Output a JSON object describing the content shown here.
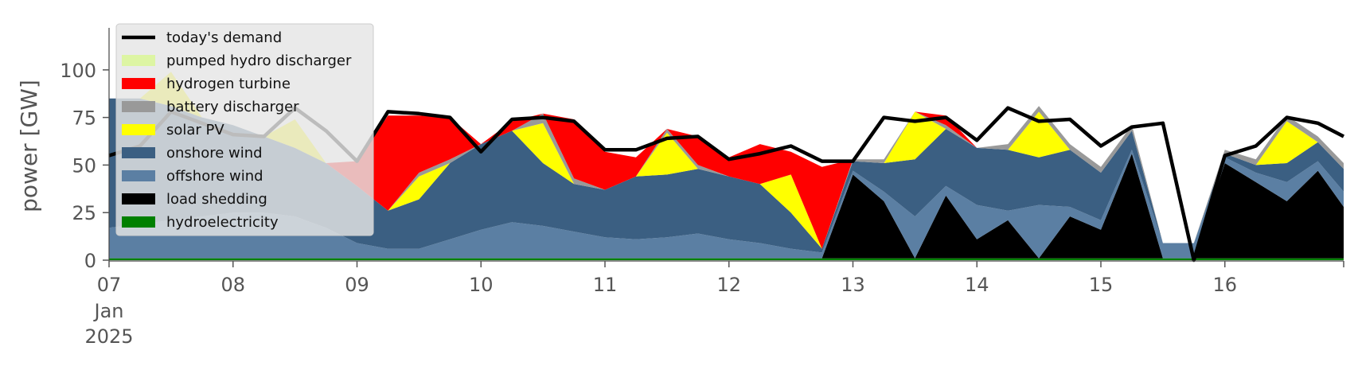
{
  "chart_data": {
    "type": "area",
    "title": "",
    "xlabel": "",
    "ylabel": "power [GW]",
    "ylim": [
      0,
      120
    ],
    "xlim": [
      "2025-01-07T00:00",
      "2025-01-16T23:00"
    ],
    "x_ticks": [
      "07",
      "08",
      "09",
      "10",
      "11",
      "12",
      "13",
      "14",
      "15",
      "16"
    ],
    "x_tick_sublabels": [
      "Jan",
      "2025"
    ],
    "y_ticks": [
      0,
      25,
      50,
      75,
      100
    ],
    "grid": false,
    "legend_placement": "top-left",
    "x": [
      "2025-01-07T00:00",
      "2025-01-07T06:00",
      "2025-01-07T12:00",
      "2025-01-07T18:00",
      "2025-01-08T00:00",
      "2025-01-08T06:00",
      "2025-01-08T12:00",
      "2025-01-08T18:00",
      "2025-01-09T00:00",
      "2025-01-09T06:00",
      "2025-01-09T12:00",
      "2025-01-09T18:00",
      "2025-01-10T00:00",
      "2025-01-10T06:00",
      "2025-01-10T12:00",
      "2025-01-10T18:00",
      "2025-01-11T00:00",
      "2025-01-11T06:00",
      "2025-01-11T12:00",
      "2025-01-11T18:00",
      "2025-01-12T00:00",
      "2025-01-12T06:00",
      "2025-01-12T12:00",
      "2025-01-12T18:00",
      "2025-01-13T00:00",
      "2025-01-13T06:00",
      "2025-01-13T12:00",
      "2025-01-13T18:00",
      "2025-01-14T00:00",
      "2025-01-14T06:00",
      "2025-01-14T12:00",
      "2025-01-14T18:00",
      "2025-01-15T00:00",
      "2025-01-15T06:00",
      "2025-01-15T12:00",
      "2025-01-15T18:00",
      "2025-01-16T00:00",
      "2025-01-16T06:00",
      "2025-01-16T12:00",
      "2025-01-16T18:00",
      "2025-01-16T23:00"
    ],
    "series": [
      {
        "name": "hydroelectricity",
        "color": "#008000",
        "values": [
          1,
          1,
          1,
          1,
          1,
          1,
          1,
          1,
          1,
          1,
          1,
          1,
          1,
          1,
          1,
          1,
          1,
          1,
          1,
          1,
          1,
          1,
          1,
          1,
          1,
          1,
          1,
          1,
          1,
          1,
          1,
          1,
          1,
          1,
          1,
          1,
          1,
          1,
          1,
          1,
          1
        ]
      },
      {
        "name": "load shedding",
        "color": "#000000",
        "values": [
          0,
          0,
          0,
          0,
          0,
          0,
          0,
          0,
          0,
          0,
          0,
          0,
          0,
          0,
          0,
          0,
          0,
          0,
          0,
          0,
          0,
          0,
          0,
          0,
          44,
          30,
          0,
          33,
          10,
          20,
          0,
          22,
          15,
          55,
          0,
          0,
          50,
          40,
          30,
          46,
          27
        ]
      },
      {
        "name": "offshore wind",
        "color": "#5b7fa3",
        "values": [
          16,
          18,
          20,
          22,
          24,
          24,
          22,
          16,
          8,
          5,
          5,
          10,
          15,
          19,
          17,
          14,
          11,
          10,
          11,
          13,
          10,
          8,
          5,
          3,
          2,
          5,
          22,
          5,
          18,
          5,
          28,
          5,
          5,
          2,
          8,
          8,
          3,
          5,
          10,
          5,
          8
        ]
      },
      {
        "name": "onshore wind",
        "color": "#3b5f82",
        "values": [
          68,
          66,
          60,
          52,
          46,
          40,
          36,
          34,
          30,
          20,
          26,
          40,
          45,
          48,
          33,
          25,
          25,
          33,
          33,
          34,
          33,
          31,
          19,
          2,
          5,
          15,
          30,
          30,
          30,
          32,
          25,
          30,
          25,
          10,
          0,
          0,
          2,
          4,
          10,
          10,
          12
        ]
      },
      {
        "name": "solar PV",
        "color": "#ffff00",
        "values": [
          0,
          0,
          18,
          0,
          0,
          0,
          15,
          0,
          0,
          0,
          12,
          0,
          0,
          0,
          21,
          0,
          0,
          0,
          22,
          0,
          0,
          0,
          20,
          0,
          0,
          0,
          25,
          0,
          0,
          0,
          24,
          0,
          0,
          0,
          0,
          0,
          0,
          0,
          22,
          0,
          0
        ]
      },
      {
        "name": "battery discharger",
        "color": "#999999",
        "values": [
          0,
          0,
          0,
          0,
          0,
          0,
          0,
          0,
          0,
          0,
          2,
          2,
          0,
          0,
          5,
          3,
          0,
          0,
          2,
          2,
          0,
          0,
          0,
          0,
          1,
          2,
          0,
          2,
          0,
          3,
          3,
          3,
          3,
          3,
          0,
          0,
          2,
          3,
          3,
          3,
          3
        ]
      },
      {
        "name": "hydrogen turbine",
        "color": "#ff0000",
        "values": [
          0,
          0,
          0,
          0,
          0,
          0,
          0,
          0,
          13,
          50,
          30,
          22,
          0,
          5,
          0,
          31,
          20,
          10,
          0,
          15,
          10,
          21,
          12,
          43,
          0,
          0,
          0,
          5,
          0,
          0,
          0,
          0,
          0,
          0,
          0,
          0,
          0,
          0,
          0,
          0,
          0
        ]
      },
      {
        "name": "pumped hydro discharger",
        "color": "#ddf5a3",
        "values": [
          0,
          0,
          0,
          0,
          0,
          0,
          0,
          0,
          0,
          0,
          0,
          0,
          0,
          0,
          0,
          0,
          0,
          0,
          0,
          0,
          0,
          0,
          0,
          0,
          0,
          0,
          0,
          0,
          0,
          0,
          0,
          0,
          0,
          0,
          0,
          0,
          0,
          0,
          0,
          0,
          0
        ]
      }
    ],
    "demand": {
      "name": "today's demand",
      "color": "#000000",
      "values": [
        55,
        60,
        78,
        72,
        66,
        65,
        80,
        68,
        52,
        78,
        77,
        75,
        57,
        74,
        75,
        73,
        58,
        58,
        64,
        65,
        53,
        56,
        60,
        52,
        52,
        75,
        73,
        75,
        63,
        80,
        73,
        74,
        60,
        70,
        72,
        0,
        55,
        60,
        75,
        72,
        65
      ]
    },
    "legend": [
      "today's demand",
      "pumped hydro discharger",
      "hydrogen turbine",
      "battery discharger",
      "solar PV",
      "onshore wind",
      "offshore wind",
      "load shedding",
      "hydroelectricity"
    ]
  }
}
